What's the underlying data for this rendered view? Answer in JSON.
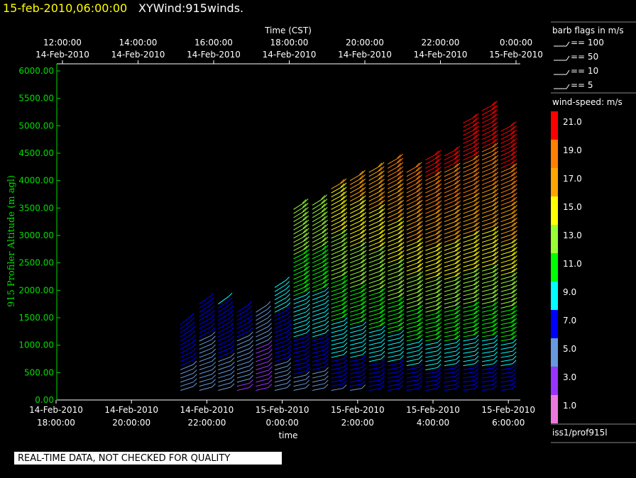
{
  "header": {
    "date": "15-feb-2010,06:00:00",
    "title": "XYWind:915winds."
  },
  "top_axis": {
    "title": "Time (CST)",
    "ticks": [
      {
        "time": "12:00:00",
        "date": "14-Feb-2010",
        "h": 12
      },
      {
        "time": "14:00:00",
        "date": "14-Feb-2010",
        "h": 14
      },
      {
        "time": "16:00:00",
        "date": "14-Feb-2010",
        "h": 16
      },
      {
        "time": "18:00:00",
        "date": "14-Feb-2010",
        "h": 18
      },
      {
        "time": "20:00:00",
        "date": "14-Feb-2010",
        "h": 20
      },
      {
        "time": "22:00:00",
        "date": "14-Feb-2010",
        "h": 22
      },
      {
        "time": "0:00:00",
        "date": "15-Feb-2010",
        "h": 24
      }
    ]
  },
  "bottom_axis": {
    "title": "time",
    "ticks": [
      {
        "date": "14-Feb-2010",
        "time": "18:00:00",
        "h": 18
      },
      {
        "date": "14-Feb-2010",
        "time": "20:00:00",
        "h": 20
      },
      {
        "date": "14-Feb-2010",
        "time": "22:00:00",
        "h": 22
      },
      {
        "date": "15-Feb-2010",
        "time": "0:00:00",
        "h": 24
      },
      {
        "date": "15-Feb-2010",
        "time": "2:00:00",
        "h": 26
      },
      {
        "date": "15-Feb-2010",
        "time": "4:00:00",
        "h": 28
      },
      {
        "date": "15-Feb-2010",
        "time": "6:00:00",
        "h": 30
      }
    ]
  },
  "y_axis": {
    "label": "915 Profiler Altitude (m agl)",
    "ticks": [
      "0.00",
      "500.00",
      "1000.00",
      "1500.00",
      "2000.00",
      "2500.00",
      "3000.00",
      "3500.00",
      "4000.00",
      "4500.00",
      "5000.00",
      "5500.00",
      "6000.00"
    ]
  },
  "barb_legend": {
    "title": "barb flags in m/s",
    "items": [
      "== 100",
      "== 50",
      "== 10",
      "== 5"
    ]
  },
  "speed_legend": {
    "title": "wind-speed: m/s",
    "levels": [
      {
        "label": "21.0",
        "color": "#ff0000"
      },
      {
        "label": "19.0",
        "color": "#ff8000"
      },
      {
        "label": "17.0",
        "color": "#ffa500"
      },
      {
        "label": "15.0",
        "color": "#ffff00"
      },
      {
        "label": "13.0",
        "color": "#99ff33"
      },
      {
        "label": "11.0",
        "color": "#00ff00"
      },
      {
        "label": "9.0",
        "color": "#00ffff"
      },
      {
        "label": "7.0",
        "color": "#0000ff"
      },
      {
        "label": "5.0",
        "color": "#6699dd"
      },
      {
        "label": "3.0",
        "color": "#9933ff"
      },
      {
        "label": "1.0",
        "color": "#ee77dd"
      }
    ]
  },
  "station": "iss1/prof915l",
  "qc_notice": "REAL-TIME DATA, NOT CHECKED FOR QUALITY",
  "chart_data": {
    "type": "scatter",
    "title": "XYWind:915winds.",
    "xlabel": "time",
    "x2label": "Time (CST)",
    "ylabel": "915 Profiler Altitude (m agl)",
    "xlim_hours_cst": [
      18,
      30
    ],
    "ylim": [
      0,
      6200
    ],
    "units": "m/s",
    "series": [
      {
        "x": 21.3,
        "top": 1400,
        "dir": 230,
        "s_low": 4,
        "s_high": 8
      },
      {
        "x": 21.8,
        "top": 1800,
        "dir": 235,
        "s_low": 4,
        "s_high": 7
      },
      {
        "x": 22.3,
        "top": 1750,
        "dir": 235,
        "s_low": 4,
        "s_high": 8
      },
      {
        "x": 22.8,
        "top": 1600,
        "dir": 240,
        "s_low": 3,
        "s_high": 7
      },
      {
        "x": 23.3,
        "top": 1600,
        "dir": 240,
        "s_low": 2,
        "s_high": 5
      },
      {
        "x": 23.8,
        "top": 2050,
        "dir": 240,
        "s_low": 4,
        "s_high": 9
      },
      {
        "x": 24.3,
        "top": 3500,
        "dir": 240,
        "s_low": 4,
        "s_high": 14
      },
      {
        "x": 24.8,
        "top": 3600,
        "dir": 240,
        "s_low": 4,
        "s_high": 14
      },
      {
        "x": 25.3,
        "top": 3850,
        "dir": 245,
        "s_low": 5,
        "s_high": 16
      },
      {
        "x": 25.8,
        "top": 4000,
        "dir": 245,
        "s_low": 5,
        "s_high": 17
      },
      {
        "x": 26.3,
        "top": 4200,
        "dir": 245,
        "s_low": 5,
        "s_high": 18
      },
      {
        "x": 26.8,
        "top": 4300,
        "dir": 245,
        "s_low": 5,
        "s_high": 19
      },
      {
        "x": 27.3,
        "top": 4200,
        "dir": 245,
        "s_low": 5,
        "s_high": 20
      },
      {
        "x": 27.8,
        "top": 4400,
        "dir": 248,
        "s_low": 5,
        "s_high": 21
      },
      {
        "x": 28.3,
        "top": 4500,
        "dir": 250,
        "s_low": 5,
        "s_high": 21
      },
      {
        "x": 28.8,
        "top": 5100,
        "dir": 250,
        "s_low": 5,
        "s_high": 22
      },
      {
        "x": 29.3,
        "top": 5300,
        "dir": 250,
        "s_low": 5,
        "s_high": 22
      },
      {
        "x": 29.8,
        "top": 4900,
        "dir": 250,
        "s_low": 5,
        "s_high": 22
      }
    ]
  }
}
